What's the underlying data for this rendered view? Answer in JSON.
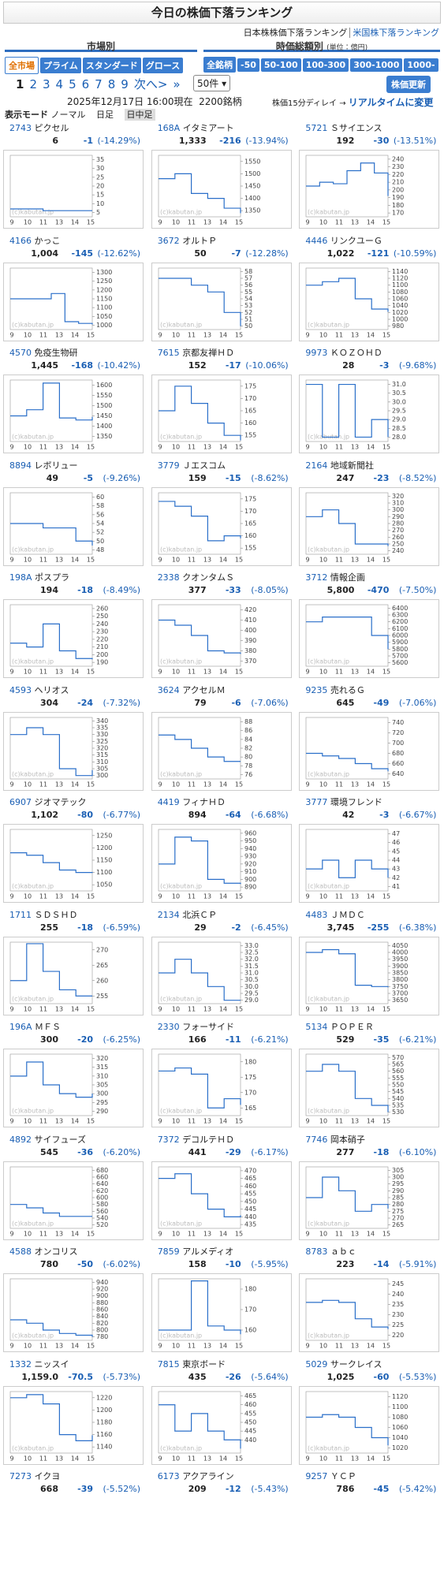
{
  "header": {
    "title": "今日の株価下落ランキング",
    "links": [
      "日本株株価下落ランキング",
      "米国株下落ランキング"
    ]
  },
  "filters": {
    "market_label": "市場別",
    "market": [
      "全市場",
      "プライム",
      "スタンダード",
      "グロース"
    ],
    "cap_label": "時価総額別",
    "cap_unit": "(単位：億円)",
    "cap": [
      "全銘柄",
      "-50",
      "50-100",
      "100-300",
      "300-1000",
      "1000-"
    ]
  },
  "pagination": {
    "pages": [
      "1",
      "2",
      "3",
      "4",
      "5",
      "6",
      "7",
      "8",
      "9"
    ],
    "next": "次へ>",
    "last": "»",
    "per_page": "50件",
    "refresh": "株価更新"
  },
  "status": {
    "datetime": "2025年12月17日 16:00現在",
    "count": "2200銘柄",
    "delay": "株価15分ディレイ →",
    "realtime": "リアルタイムに変更"
  },
  "display_mode": {
    "label": "表示モード",
    "options": [
      "ノーマル",
      "日足",
      "日中足"
    ]
  },
  "chart_axis": {
    "x_labels": [
      "9",
      "10",
      "11",
      "13",
      "14",
      "15"
    ],
    "watermark": "(c)kabutan.jp"
  },
  "stocks": [
    {
      "code": "2743",
      "name": "ピクセル",
      "price": "6",
      "change": "-1",
      "pct": "(-14.29%)",
      "chart": {
        "ylim": [
          2.5,
          37.5
        ],
        "yticks": [
          5,
          10,
          15,
          20,
          25,
          30,
          35
        ],
        "values": [
          7,
          7,
          6,
          6,
          6,
          6
        ]
      }
    },
    {
      "code": "168A",
      "name": "イタミアート",
      "price": "1,333",
      "change": "-216",
      "pct": "(-13.94%)",
      "chart": {
        "ylim": [
          1325,
          1575
        ],
        "yticks": [
          1350,
          1400,
          1450,
          1500,
          1550
        ],
        "values": [
          1480,
          1500,
          1420,
          1400,
          1360,
          1340
        ]
      }
    },
    {
      "code": "5721",
      "name": "Ｓサイエンス",
      "price": "192",
      "change": "-30",
      "pct": "(-13.51%)",
      "chart": {
        "ylim": [
          165,
          245
        ],
        "yticks": [
          170,
          180,
          190,
          200,
          210,
          220,
          230,
          240
        ],
        "values": [
          205,
          210,
          208,
          225,
          235,
          222,
          192
        ]
      }
    },
    {
      "code": "4166",
      "name": "かっこ",
      "price": "1,004",
      "change": "-145",
      "pct": "(-12.62%)",
      "chart": {
        "ylim": [
          975,
          1325
        ],
        "yticks": [
          1000,
          1050,
          1100,
          1150,
          1200,
          1250,
          1300
        ],
        "values": [
          1150,
          1150,
          1150,
          1180,
          1020,
          1010,
          1004
        ]
      }
    },
    {
      "code": "3672",
      "name": "オルトＰ",
      "price": "50",
      "change": "-7",
      "pct": "(-12.28%)",
      "chart": {
        "ylim": [
          49.5,
          58.5
        ],
        "yticks": [
          50,
          51,
          52,
          53,
          54,
          55,
          56,
          57,
          58
        ],
        "values": [
          57,
          57,
          56,
          55,
          52,
          50
        ]
      }
    },
    {
      "code": "4446",
      "name": "リンクユーＧ",
      "price": "1,022",
      "change": "-121",
      "pct": "(-10.59%)",
      "chart": {
        "ylim": [
          970,
          1150
        ],
        "yticks": [
          980,
          1000,
          1020,
          1040,
          1060,
          1080,
          1100,
          1120,
          1140
        ],
        "values": [
          1100,
          1110,
          1120,
          1060,
          1030,
          1022
        ]
      }
    },
    {
      "code": "4570",
      "name": "免疫生物研",
      "price": "1,445",
      "change": "-168",
      "pct": "(-10.42%)",
      "chart": {
        "ylim": [
          1325,
          1625
        ],
        "yticks": [
          1350,
          1400,
          1450,
          1500,
          1550,
          1600
        ],
        "values": [
          1450,
          1480,
          1610,
          1440,
          1430,
          1445
        ]
      }
    },
    {
      "code": "7615",
      "name": "京都友禅ＨＤ",
      "price": "152",
      "change": "-17",
      "pct": "(-10.06%)",
      "chart": {
        "ylim": [
          152.5,
          177.5
        ],
        "yticks": [
          155,
          160,
          165,
          170,
          175
        ],
        "values": [
          165,
          175,
          168,
          160,
          155,
          153
        ]
      }
    },
    {
      "code": "9973",
      "name": "ＫＯＺＯＨＤ",
      "price": "28",
      "change": "-3",
      "pct": "(-9.68%)",
      "chart": {
        "ylim": [
          27.75,
          31.25
        ],
        "yticks": [
          {
            "value": 28,
            "label": "28.0"
          },
          28.5,
          {
            "value": 29,
            "label": "29.0"
          },
          29.5,
          {
            "value": 30,
            "label": "30.0"
          },
          30.5,
          {
            "value": 31,
            "label": "31.0"
          }
        ],
        "values": [
          31,
          28,
          31,
          28,
          29,
          28
        ]
      }
    },
    {
      "code": "8894",
      "name": "レボリュー",
      "price": "49",
      "change": "-5",
      "pct": "(-9.26%)",
      "chart": {
        "ylim": [
          47,
          61
        ],
        "yticks": [
          48,
          50,
          52,
          54,
          56,
          58,
          60
        ],
        "values": [
          54,
          54,
          53,
          53,
          50,
          49
        ]
      }
    },
    {
      "code": "3779",
      "name": "Ｊエスコム",
      "price": "159",
      "change": "-15",
      "pct": "(-8.62%)",
      "chart": {
        "ylim": [
          152.5,
          177.5
        ],
        "yticks": [
          155,
          160,
          165,
          170,
          175
        ],
        "values": [
          174,
          172,
          168,
          158,
          160,
          159
        ]
      }
    },
    {
      "code": "2164",
      "name": "地域新聞社",
      "price": "247",
      "change": "-23",
      "pct": "(-8.52%)",
      "chart": {
        "ylim": [
          235,
          325
        ],
        "yticks": [
          240,
          250,
          260,
          270,
          280,
          290,
          300,
          310,
          320
        ],
        "values": [
          290,
          300,
          280,
          250,
          250,
          247
        ]
      }
    },
    {
      "code": "198A",
      "name": "ポスプラ",
      "price": "194",
      "change": "-18",
      "pct": "(-8.49%)",
      "chart": {
        "ylim": [
          185,
          265
        ],
        "yticks": [
          190,
          200,
          210,
          220,
          230,
          240,
          250,
          260
        ],
        "values": [
          215,
          210,
          240,
          205,
          195,
          194
        ]
      }
    },
    {
      "code": "2338",
      "name": "クオンタムＳ",
      "price": "377",
      "change": "-33",
      "pct": "(-8.05%)",
      "chart": {
        "ylim": [
          365,
          425
        ],
        "yticks": [
          370,
          380,
          390,
          400,
          410,
          420
        ],
        "values": [
          410,
          405,
          395,
          380,
          378,
          377
        ]
      }
    },
    {
      "code": "3712",
      "name": "情報企画",
      "price": "5,800",
      "change": "-470",
      "pct": "(-7.50%)",
      "chart": {
        "ylim": [
          5550,
          6450
        ],
        "yticks": [
          5600,
          5700,
          5800,
          5900,
          6000,
          6100,
          6200,
          6300,
          6400
        ],
        "values": [
          6200,
          6270,
          6270,
          6270,
          6000,
          5800
        ]
      }
    },
    {
      "code": "4593",
      "name": "ヘリオス",
      "price": "304",
      "change": "-24",
      "pct": "(-7.32%)",
      "chart": {
        "ylim": [
          297.5,
          342.5
        ],
        "yticks": [
          300,
          305,
          310,
          315,
          320,
          325,
          330,
          335,
          340
        ],
        "values": [
          330,
          335,
          330,
          305,
          300,
          304
        ]
      }
    },
    {
      "code": "3624",
      "name": "アクセルＭ",
      "price": "79",
      "change": "-6",
      "pct": "(-7.06%)",
      "chart": {
        "ylim": [
          75,
          89
        ],
        "yticks": [
          76,
          78,
          80,
          82,
          84,
          86,
          88
        ],
        "values": [
          85,
          84,
          82,
          80,
          79,
          79
        ]
      }
    },
    {
      "code": "9235",
      "name": "売れるＧ",
      "price": "645",
      "change": "-49",
      "pct": "(-7.06%)",
      "chart": {
        "ylim": [
          630,
          750
        ],
        "yticks": [
          640,
          660,
          680,
          700,
          720,
          740
        ],
        "values": [
          680,
          675,
          670,
          660,
          650,
          645
        ]
      }
    },
    {
      "code": "6907",
      "name": "ジオマテック",
      "price": "1,102",
      "change": "-80",
      "pct": "(-6.77%)",
      "chart": {
        "ylim": [
          1025,
          1275
        ],
        "yticks": [
          1050,
          1100,
          1150,
          1200,
          1250
        ],
        "values": [
          1180,
          1170,
          1140,
          1110,
          1100,
          1102
        ]
      }
    },
    {
      "code": "4419",
      "name": "フィナＨＤ",
      "price": "894",
      "change": "-64",
      "pct": "(-6.68%)",
      "chart": {
        "ylim": [
          885,
          965
        ],
        "yticks": [
          890,
          900,
          910,
          920,
          930,
          940,
          950,
          960
        ],
        "values": [
          920,
          955,
          950,
          900,
          895,
          894
        ]
      }
    },
    {
      "code": "3777",
      "name": "環境フレンド",
      "price": "42",
      "change": "-3",
      "pct": "(-6.67%)",
      "chart": {
        "ylim": [
          40.5,
          47.5
        ],
        "yticks": [
          41,
          42,
          43,
          44,
          45,
          46,
          47
        ],
        "values": [
          43,
          44,
          42,
          44,
          43,
          42
        ]
      }
    },
    {
      "code": "1711",
      "name": "ＳＤＳＨＤ",
      "price": "255",
      "change": "-18",
      "pct": "(-6.59%)",
      "chart": {
        "ylim": [
          252.5,
          272.5
        ],
        "yticks": [
          255,
          260,
          265,
          270
        ],
        "values": [
          260,
          272,
          263,
          257,
          255,
          255
        ]
      }
    },
    {
      "code": "2134",
      "name": "北浜ＣＰ",
      "price": "29",
      "change": "-2",
      "pct": "(-6.45%)",
      "chart": {
        "ylim": [
          28.75,
          33.25
        ],
        "yticks": [
          {
            "value": 29,
            "label": "29.0"
          },
          29.5,
          {
            "value": 30,
            "label": "30.0"
          },
          30.5,
          {
            "value": 31,
            "label": "31.0"
          },
          31.5,
          {
            "value": 32,
            "label": "32.0"
          },
          32.5,
          {
            "value": 33,
            "label": "33.0"
          }
        ],
        "values": [
          31,
          32,
          31,
          30,
          29,
          29
        ]
      }
    },
    {
      "code": "4483",
      "name": "ＪＭＤＣ",
      "price": "3,745",
      "change": "-255",
      "pct": "(-6.38%)",
      "chart": {
        "ylim": [
          3625,
          4075
        ],
        "yticks": [
          3650,
          3700,
          3750,
          3800,
          3850,
          3900,
          3950,
          4000,
          4050
        ],
        "values": [
          4000,
          4020,
          3990,
          3760,
          3750,
          3745
        ]
      }
    },
    {
      "code": "196A",
      "name": "ＭＦＳ",
      "price": "300",
      "change": "-20",
      "pct": "(-6.25%)",
      "chart": {
        "ylim": [
          287.5,
          322.5
        ],
        "yticks": [
          290,
          295,
          300,
          305,
          310,
          315,
          320
        ],
        "values": [
          310,
          318,
          305,
          300,
          298,
          300
        ]
      }
    },
    {
      "code": "2330",
      "name": "フォーサイド",
      "price": "166",
      "change": "-11",
      "pct": "(-6.21%)",
      "chart": {
        "ylim": [
          162.5,
          182.5
        ],
        "yticks": [
          165,
          170,
          175,
          180
        ],
        "values": [
          177,
          178,
          176,
          165,
          168,
          166
        ]
      }
    },
    {
      "code": "5134",
      "name": "ＰＯＰＥＲ",
      "price": "529",
      "change": "-35",
      "pct": "(-6.21%)",
      "chart": {
        "ylim": [
          527.5,
          572.5
        ],
        "yticks": [
          530,
          535,
          540,
          545,
          550,
          555,
          560,
          565,
          570
        ],
        "values": [
          560,
          565,
          560,
          540,
          535,
          530
        ]
      }
    },
    {
      "code": "4892",
      "name": "サイフューズ",
      "price": "545",
      "change": "-36",
      "pct": "(-6.20%)",
      "chart": {
        "ylim": [
          510,
          690
        ],
        "yticks": [
          520,
          540,
          560,
          580,
          600,
          620,
          640,
          660,
          680
        ],
        "values": [
          580,
          570,
          555,
          545,
          545,
          545
        ]
      }
    },
    {
      "code": "7372",
      "name": "デコルテＨＤ",
      "price": "441",
      "change": "-29",
      "pct": "(-6.17%)",
      "chart": {
        "ylim": [
          432.5,
          472.5
        ],
        "yticks": [
          435,
          440,
          445,
          450,
          455,
          460,
          465,
          470
        ],
        "values": [
          465,
          468,
          455,
          445,
          440,
          441
        ]
      }
    },
    {
      "code": "7746",
      "name": "岡本硝子",
      "price": "277",
      "change": "-18",
      "pct": "(-6.10%)",
      "chart": {
        "ylim": [
          262.5,
          307.5
        ],
        "yticks": [
          265,
          270,
          275,
          280,
          285,
          290,
          295,
          300,
          305
        ],
        "values": [
          285,
          300,
          290,
          275,
          280,
          277
        ]
      }
    },
    {
      "code": "4588",
      "name": "オンコリス",
      "price": "780",
      "change": "-50",
      "pct": "(-6.02%)",
      "chart": {
        "ylim": [
          770,
          950
        ],
        "yticks": [
          780,
          800,
          820,
          840,
          860,
          880,
          900,
          920,
          940
        ],
        "values": [
          830,
          820,
          800,
          790,
          785,
          780
        ]
      }
    },
    {
      "code": "7859",
      "name": "アルメディオ",
      "price": "158",
      "change": "-10",
      "pct": "(-5.95%)",
      "chart": {
        "ylim": [
          155,
          185
        ],
        "yticks": [
          160,
          170,
          180
        ],
        "values": [
          160,
          160,
          184,
          162,
          160,
          158
        ]
      }
    },
    {
      "code": "8783",
      "name": "ａｂｃ",
      "price": "223",
      "change": "-14",
      "pct": "(-5.91%)",
      "chart": {
        "ylim": [
          217.5,
          247.5
        ],
        "yticks": [
          220,
          225,
          230,
          235,
          240,
          245
        ],
        "values": [
          236,
          237,
          236,
          228,
          224,
          223
        ]
      }
    },
    {
      "code": "1332",
      "name": "ニッスイ",
      "price": "1,159.0",
      "change": "-70.5",
      "pct": "(-5.73%)",
      "chart": {
        "ylim": [
          1130,
          1230
        ],
        "yticks": [
          1140,
          1160,
          1180,
          1200,
          1220
        ],
        "values": [
          1220,
          1225,
          1210,
          1160,
          1150,
          1159
        ]
      }
    },
    {
      "code": "7815",
      "name": "東京ボード",
      "price": "435",
      "change": "-26",
      "pct": "(-5.64%)",
      "chart": {
        "ylim": [
          432.5,
          467.5
        ],
        "yticks": [
          440,
          445,
          450,
          455,
          460,
          465
        ],
        "values": [
          460,
          445,
          455,
          445,
          440,
          435
        ]
      }
    },
    {
      "code": "5029",
      "name": "サークレイス",
      "price": "1,025",
      "change": "-60",
      "pct": "(-5.53%)",
      "chart": {
        "ylim": [
          1010,
          1130
        ],
        "yticks": [
          1020,
          1040,
          1060,
          1080,
          1100,
          1120
        ],
        "values": [
          1080,
          1085,
          1080,
          1060,
          1040,
          1025
        ]
      }
    },
    {
      "code": "7273",
      "name": "イクヨ",
      "price": "668",
      "change": "-39",
      "pct": "(-5.52%)"
    },
    {
      "code": "6173",
      "name": "アクアライン",
      "price": "209",
      "change": "-12",
      "pct": "(-5.43%)"
    },
    {
      "code": "9257",
      "name": "ＹＣＰ",
      "price": "786",
      "change": "-45",
      "pct": "(-5.42%)"
    }
  ]
}
